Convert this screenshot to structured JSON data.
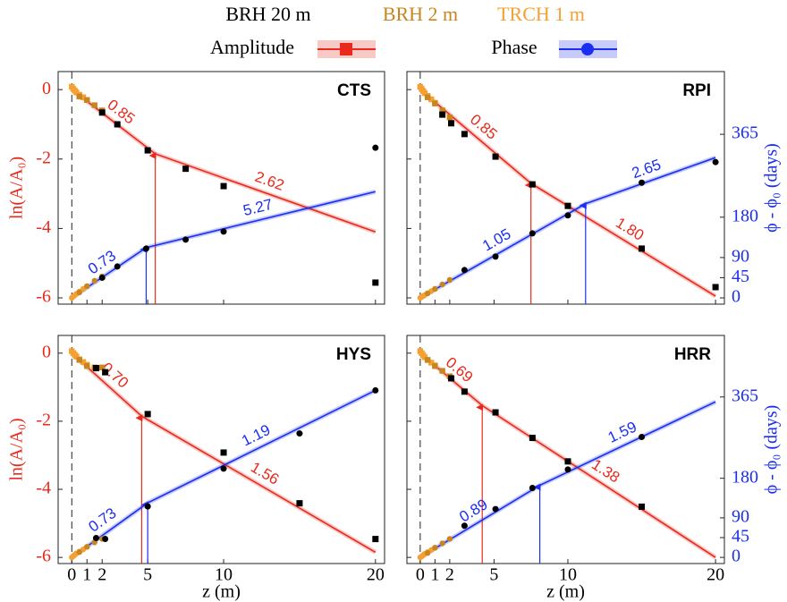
{
  "legend": {
    "sources": [
      {
        "name": "BRH 20 m",
        "color": "#000000"
      },
      {
        "name": "BRH 2 m",
        "color": "#c8861e"
      },
      {
        "name": "TRCH 1 m",
        "color": "#f5a033"
      }
    ],
    "quantities": [
      {
        "name": "Amplitude",
        "color": "#e8291c",
        "marker": "square"
      },
      {
        "name": "Phase",
        "color": "#1a2ff0",
        "marker": "circle"
      }
    ]
  },
  "chart_data": [
    {
      "type": "line",
      "title": "CTS",
      "ylabel": "ln(A/A₀)",
      "xlim": [
        -0.9,
        20.6
      ],
      "xticks": [
        0,
        1,
        2,
        5,
        10,
        20
      ],
      "ylim": [
        -6.18,
        0.52
      ],
      "yticks": [
        0,
        -2,
        -4,
        -6
      ],
      "y2lim": [
        -14,
        505
      ],
      "amplitude": {
        "color": "#e8291c",
        "marker": "square",
        "points": [
          {
            "name": "BRH 20 m",
            "color": "#000000",
            "x": [
              2,
              3,
              5,
              7.5,
              10,
              20
            ],
            "values": [
              -0.66,
              -1.0,
              -1.75,
              -2.28,
              -2.78,
              -5.56
            ]
          },
          {
            "name": "BRH 2 m",
            "color": "#c8861e",
            "x": [
              0.5,
              1,
              1.5,
              2
            ],
            "values": [
              -0.2,
              -0.3,
              -0.45,
              -0.6
            ]
          },
          {
            "name": "TRCH 1 m",
            "color": "#f5a033",
            "x": [
              0,
              0.1,
              0.2,
              0.3,
              0.5,
              0.75,
              1
            ],
            "values": [
              0.08,
              0.02,
              -0.03,
              -0.08,
              -0.15,
              -0.22,
              -0.3
            ]
          }
        ],
        "fit": {
          "x": [
            0,
            5.5,
            20
          ],
          "values": [
            0,
            -1.85,
            -4.1
          ]
        },
        "slopes": [
          "0.85",
          "2.62"
        ]
      },
      "phase": {
        "color": "#1a2ff0",
        "marker": "circle",
        "axis": "y2",
        "points": [
          {
            "name": "BRH 20 m",
            "color": "#000000",
            "x": [
              2,
              3,
              4.9,
              7.5,
              10,
              20
            ],
            "values": [
              45,
              70,
              110,
              130,
              148,
              335
            ]
          },
          {
            "name": "BRH 2 m",
            "color": "#c8861e",
            "x": [
              0.5,
              1,
              1.5,
              2
            ],
            "values": [
              12,
              26,
              38,
              48
            ]
          },
          {
            "name": "TRCH 1 m",
            "color": "#f5a033",
            "x": [
              0,
              0.1,
              0.2,
              0.3,
              0.5,
              0.75,
              1
            ],
            "values": [
              0,
              3,
              6,
              9,
              14,
              20,
              26
            ]
          }
        ],
        "fit": {
          "x": [
            0,
            4.9,
            20
          ],
          "values": [
            0,
            112,
            237
          ]
        },
        "slopes": [
          "0.73",
          "5.27"
        ]
      }
    },
    {
      "type": "line",
      "title": "RPI",
      "y2label": "ϕ - ϕ₀ (days)",
      "xlim": [
        -0.9,
        20.6
      ],
      "xticks": [
        0,
        1,
        2,
        5,
        10,
        20
      ],
      "ylim": [
        -6.18,
        0.52
      ],
      "yticks": [
        0,
        -2,
        -4,
        -6
      ],
      "y2lim": [
        -14,
        505
      ],
      "y2ticks": [
        0,
        45,
        90,
        180,
        365
      ],
      "amplitude": {
        "color": "#e8291c",
        "marker": "square",
        "points": [
          {
            "name": "BRH 20 m",
            "color": "#000000",
            "x": [
              1.5,
              2.1,
              3,
              5.1,
              7.6,
              10,
              15,
              20
            ],
            "values": [
              -0.72,
              -0.97,
              -1.28,
              -1.93,
              -2.73,
              -3.35,
              -4.58,
              -5.69
            ]
          },
          {
            "name": "BRH 2 m",
            "color": "#c8861e",
            "x": [
              0.5,
              1,
              1.5,
              2
            ],
            "values": [
              -0.22,
              -0.4,
              -0.6,
              -0.8
            ]
          },
          {
            "name": "TRCH 1 m",
            "color": "#f5a033",
            "x": [
              0,
              0.1,
              0.2,
              0.3,
              0.5,
              0.75,
              1
            ],
            "values": [
              0.08,
              0.02,
              -0.04,
              -0.1,
              -0.18,
              -0.28,
              -0.38
            ]
          }
        ],
        "fit": {
          "x": [
            0,
            7.5,
            20
          ],
          "values": [
            0,
            -2.7,
            -5.95
          ]
        },
        "slopes": [
          "0.85",
          "1.80"
        ]
      },
      "phase": {
        "color": "#1a2ff0",
        "marker": "circle",
        "axis": "y2",
        "points": [
          {
            "name": "BRH 20 m",
            "color": "#000000",
            "x": [
              3,
              5.1,
              7.6,
              10,
              15,
              20
            ],
            "values": [
              62,
              92,
              144,
              184,
              257,
              303
            ]
          },
          {
            "name": "BRH 2 m",
            "color": "#c8861e",
            "x": [
              0.5,
              1,
              1.5,
              2
            ],
            "values": [
              10,
              20,
              30,
              40
            ]
          },
          {
            "name": "TRCH 1 m",
            "color": "#f5a033",
            "x": [
              0,
              0.1,
              0.2,
              0.3,
              0.5,
              0.75,
              1
            ],
            "values": [
              0,
              2,
              4,
              6,
              10,
              15,
              20
            ]
          }
        ],
        "fit": {
          "x": [
            0,
            11.2,
            20
          ],
          "values": [
            0,
            210,
            313
          ]
        },
        "slopes": [
          "1.05",
          "2.65"
        ]
      }
    },
    {
      "type": "line",
      "title": "HYS",
      "ylabel": "ln(A/A₀)",
      "xlabel": "z (m)",
      "xlim": [
        -0.9,
        20.6
      ],
      "xticks": [
        0,
        1,
        2,
        5,
        10,
        20
      ],
      "ylim": [
        -6.18,
        0.52
      ],
      "yticks": [
        0,
        -2,
        -4,
        -6
      ],
      "y2lim": [
        -14,
        505
      ],
      "amplitude": {
        "color": "#e8291c",
        "marker": "square",
        "points": [
          {
            "name": "BRH 20 m",
            "color": "#000000",
            "x": [
              1.6,
              2.2,
              5,
              10,
              15,
              20
            ],
            "values": [
              -0.44,
              -0.56,
              -1.79,
              -2.92,
              -4.41,
              -5.46
            ]
          },
          {
            "name": "BRH 2 m",
            "color": "#c8861e",
            "x": [
              0.5,
              1,
              1.5,
              2
            ],
            "values": [
              -0.2,
              -0.38,
              -0.42,
              -0.42
            ]
          },
          {
            "name": "TRCH 1 m",
            "color": "#f5a033",
            "x": [
              0,
              0.1,
              0.2,
              0.3,
              0.5,
              0.75,
              1
            ],
            "values": [
              0.06,
              0.0,
              -0.05,
              -0.1,
              -0.18,
              -0.26,
              -0.34
            ]
          }
        ],
        "fit": {
          "x": [
            0,
            4.6,
            20
          ],
          "values": [
            0,
            -1.85,
            -5.85
          ]
        },
        "slopes": [
          "0.70",
          "1.56"
        ]
      },
      "phase": {
        "color": "#1a2ff0",
        "marker": "circle",
        "axis": "y2",
        "points": [
          {
            "name": "BRH 20 m",
            "color": "#000000",
            "x": [
              1.6,
              2.2,
              5,
              10,
              15,
              20
            ],
            "values": [
              44,
              42,
              116,
              202,
              282,
              380
            ]
          },
          {
            "name": "BRH 2 m",
            "color": "#c8861e",
            "x": [
              0.5,
              1,
              1.5,
              2
            ],
            "values": [
              12,
              24,
              34,
              42
            ]
          },
          {
            "name": "TRCH 1 m",
            "color": "#f5a033",
            "x": [
              0,
              0.1,
              0.2,
              0.3,
              0.5,
              0.75,
              1
            ],
            "values": [
              0,
              3,
              6,
              9,
              13,
              18,
              24
            ]
          }
        ],
        "fit": {
          "x": [
            0,
            5,
            20
          ],
          "values": [
            0,
            124,
            380
          ]
        },
        "slopes": [
          "0.73",
          "1.19"
        ]
      }
    },
    {
      "type": "line",
      "title": "HRR",
      "xlabel": "z (m)",
      "y2label": "ϕ - ϕ₀ (days)",
      "xlim": [
        -0.9,
        20.6
      ],
      "xticks": [
        0,
        1,
        2,
        5,
        10,
        20
      ],
      "ylim": [
        -6.18,
        0.52
      ],
      "yticks": [
        0,
        -2,
        -4,
        -6
      ],
      "y2lim": [
        -14,
        505
      ],
      "y2ticks": [
        0,
        45,
        90,
        180,
        365
      ],
      "amplitude": {
        "color": "#e8291c",
        "marker": "square",
        "points": [
          {
            "name": "BRH 20 m",
            "color": "#000000",
            "x": [
              2.1,
              3,
              5.1,
              7.6,
              10,
              15
            ],
            "values": [
              -0.74,
              -1.13,
              -1.74,
              -2.49,
              -3.18,
              -4.51
            ]
          },
          {
            "name": "BRH 2 m",
            "color": "#c8861e",
            "x": [
              0.5,
              1,
              1.5,
              2
            ],
            "values": [
              -0.2,
              -0.38,
              -0.52,
              -0.68
            ]
          },
          {
            "name": "TRCH 1 m",
            "color": "#f5a033",
            "x": [
              0,
              0.1,
              0.2,
              0.3,
              0.5,
              0.75,
              1
            ],
            "values": [
              0.06,
              0.0,
              -0.06,
              -0.12,
              -0.2,
              -0.28,
              -0.36
            ]
          }
        ],
        "fit": {
          "x": [
            0,
            4.2,
            20
          ],
          "values": [
            0,
            -1.54,
            -6
          ]
        },
        "slopes": [
          "0.69",
          "1.38"
        ]
      },
      "phase": {
        "color": "#1a2ff0",
        "marker": "circle",
        "axis": "y2",
        "points": [
          {
            "name": "BRH 20 m",
            "color": "#000000",
            "x": [
              3,
              5.1,
              7.6,
              10,
              15
            ],
            "values": [
              72,
              110,
              158,
              200,
              274
            ]
          },
          {
            "name": "BRH 2 m",
            "color": "#c8861e",
            "x": [
              0.5,
              1,
              1.5,
              2
            ],
            "values": [
              10,
              22,
              32,
              42
            ]
          },
          {
            "name": "TRCH 1 m",
            "color": "#f5a033",
            "x": [
              0,
              0.1,
              0.2,
              0.3,
              0.5,
              0.75,
              1
            ],
            "values": [
              0,
              2,
              5,
              8,
              12,
              17,
              22
            ]
          }
        ],
        "fit": {
          "x": [
            0,
            8.1,
            20
          ],
          "values": [
            0,
            164,
            354
          ]
        },
        "slopes": [
          "0.89",
          "1.59"
        ]
      }
    }
  ]
}
